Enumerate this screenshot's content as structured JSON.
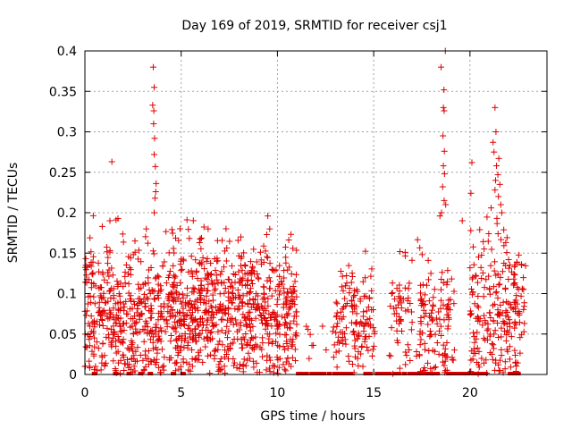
{
  "chart_data": {
    "type": "scatter",
    "title": "Day 169 of 2019, SRMTID for receiver csj1",
    "xlabel": "GPS time / hours",
    "ylabel": "SRMTID / TECUs",
    "xlim": [
      0,
      24
    ],
    "ylim": [
      0,
      0.4
    ],
    "xticks": [
      0,
      5,
      10,
      15,
      20
    ],
    "yticks": [
      0,
      0.05,
      0.1,
      0.15,
      0.2,
      0.25,
      0.3,
      0.35,
      0.4
    ],
    "xtick_labels": [
      "0",
      "5",
      "10",
      "15",
      "20"
    ],
    "ytick_labels": [
      "0",
      "0.05",
      "0.1",
      "0.15",
      "0.2",
      "0.25",
      "0.3",
      "0.35",
      "0.4"
    ],
    "grid": true,
    "marker": "plus",
    "color": "#e00000",
    "clusters": [
      {
        "x0": 0.0,
        "x1": 11.0,
        "n": 1150,
        "base": 0.075,
        "spread": 0.045,
        "max": 0.2
      },
      {
        "x0": 11.3,
        "x1": 13.0,
        "n": 12,
        "base": 0.04,
        "spread": 0.02,
        "max": 0.07
      },
      {
        "x0": 13.0,
        "x1": 15.1,
        "n": 130,
        "base": 0.07,
        "spread": 0.035,
        "max": 0.16
      },
      {
        "x0": 15.8,
        "x1": 17.0,
        "n": 55,
        "base": 0.07,
        "spread": 0.035,
        "max": 0.17
      },
      {
        "x0": 17.2,
        "x1": 19.2,
        "n": 120,
        "base": 0.065,
        "spread": 0.04,
        "max": 0.2
      },
      {
        "x0": 20.0,
        "x1": 22.9,
        "n": 230,
        "base": 0.08,
        "spread": 0.045,
        "max": 0.2
      }
    ],
    "points": [
      {
        "x": 3.55,
        "y": 0.38
      },
      {
        "x": 3.6,
        "y": 0.355
      },
      {
        "x": 3.52,
        "y": 0.333
      },
      {
        "x": 3.58,
        "y": 0.326
      },
      {
        "x": 3.57,
        "y": 0.31
      },
      {
        "x": 3.62,
        "y": 0.292
      },
      {
        "x": 3.6,
        "y": 0.272
      },
      {
        "x": 3.66,
        "y": 0.257
      },
      {
        "x": 3.7,
        "y": 0.236
      },
      {
        "x": 3.68,
        "y": 0.226
      },
      {
        "x": 3.64,
        "y": 0.218
      },
      {
        "x": 3.6,
        "y": 0.2
      },
      {
        "x": 1.4,
        "y": 0.263
      },
      {
        "x": 1.3,
        "y": 0.19
      },
      {
        "x": 0.9,
        "y": 0.183
      },
      {
        "x": 9.5,
        "y": 0.196
      },
      {
        "x": 9.6,
        "y": 0.18
      },
      {
        "x": 18.72,
        "y": 0.4
      },
      {
        "x": 18.5,
        "y": 0.38
      },
      {
        "x": 18.65,
        "y": 0.352
      },
      {
        "x": 18.62,
        "y": 0.33
      },
      {
        "x": 18.66,
        "y": 0.326
      },
      {
        "x": 18.6,
        "y": 0.295
      },
      {
        "x": 18.67,
        "y": 0.276
      },
      {
        "x": 18.62,
        "y": 0.258
      },
      {
        "x": 18.68,
        "y": 0.248
      },
      {
        "x": 18.58,
        "y": 0.232
      },
      {
        "x": 18.66,
        "y": 0.215
      },
      {
        "x": 18.52,
        "y": 0.2
      },
      {
        "x": 18.44,
        "y": 0.196
      },
      {
        "x": 18.74,
        "y": 0.21
      },
      {
        "x": 20.1,
        "y": 0.262
      },
      {
        "x": 20.05,
        "y": 0.224
      },
      {
        "x": 19.6,
        "y": 0.19
      },
      {
        "x": 21.3,
        "y": 0.33
      },
      {
        "x": 21.35,
        "y": 0.3
      },
      {
        "x": 21.2,
        "y": 0.287
      },
      {
        "x": 21.25,
        "y": 0.275
      },
      {
        "x": 21.5,
        "y": 0.267
      },
      {
        "x": 21.38,
        "y": 0.258
      },
      {
        "x": 21.45,
        "y": 0.247
      },
      {
        "x": 21.33,
        "y": 0.24
      },
      {
        "x": 21.55,
        "y": 0.235
      },
      {
        "x": 21.3,
        "y": 0.228
      },
      {
        "x": 21.48,
        "y": 0.22
      },
      {
        "x": 21.6,
        "y": 0.21
      },
      {
        "x": 21.1,
        "y": 0.206
      },
      {
        "x": 21.65,
        "y": 0.2
      },
      {
        "x": 21.4,
        "y": 0.193
      },
      {
        "x": 0.05,
        "y": 0.135
      },
      {
        "x": 2.6,
        "y": 0.165
      },
      {
        "x": 6.4,
        "y": 0.18
      },
      {
        "x": 8.1,
        "y": 0.17
      },
      {
        "x": 10.8,
        "y": 0.156
      }
    ],
    "zero_points_x": [
      0.5,
      1.6,
      2.3,
      2.9,
      3.4,
      4.6,
      5.1,
      11.1,
      11.3,
      11.5,
      11.8,
      12.0,
      12.2,
      12.4,
      12.7,
      13.0,
      13.2,
      13.4,
      13.6,
      13.8,
      14.6,
      14.8,
      15.2,
      15.4,
      15.6,
      15.8,
      16.1,
      16.3,
      16.6,
      16.9,
      17.1,
      17.3,
      17.5,
      17.7,
      17.9,
      18.1,
      18.3,
      18.9,
      19.1,
      19.3,
      19.5,
      19.7,
      19.9,
      20.2,
      20.4,
      20.6,
      20.8,
      22.1,
      22.3,
      22.5
    ]
  }
}
